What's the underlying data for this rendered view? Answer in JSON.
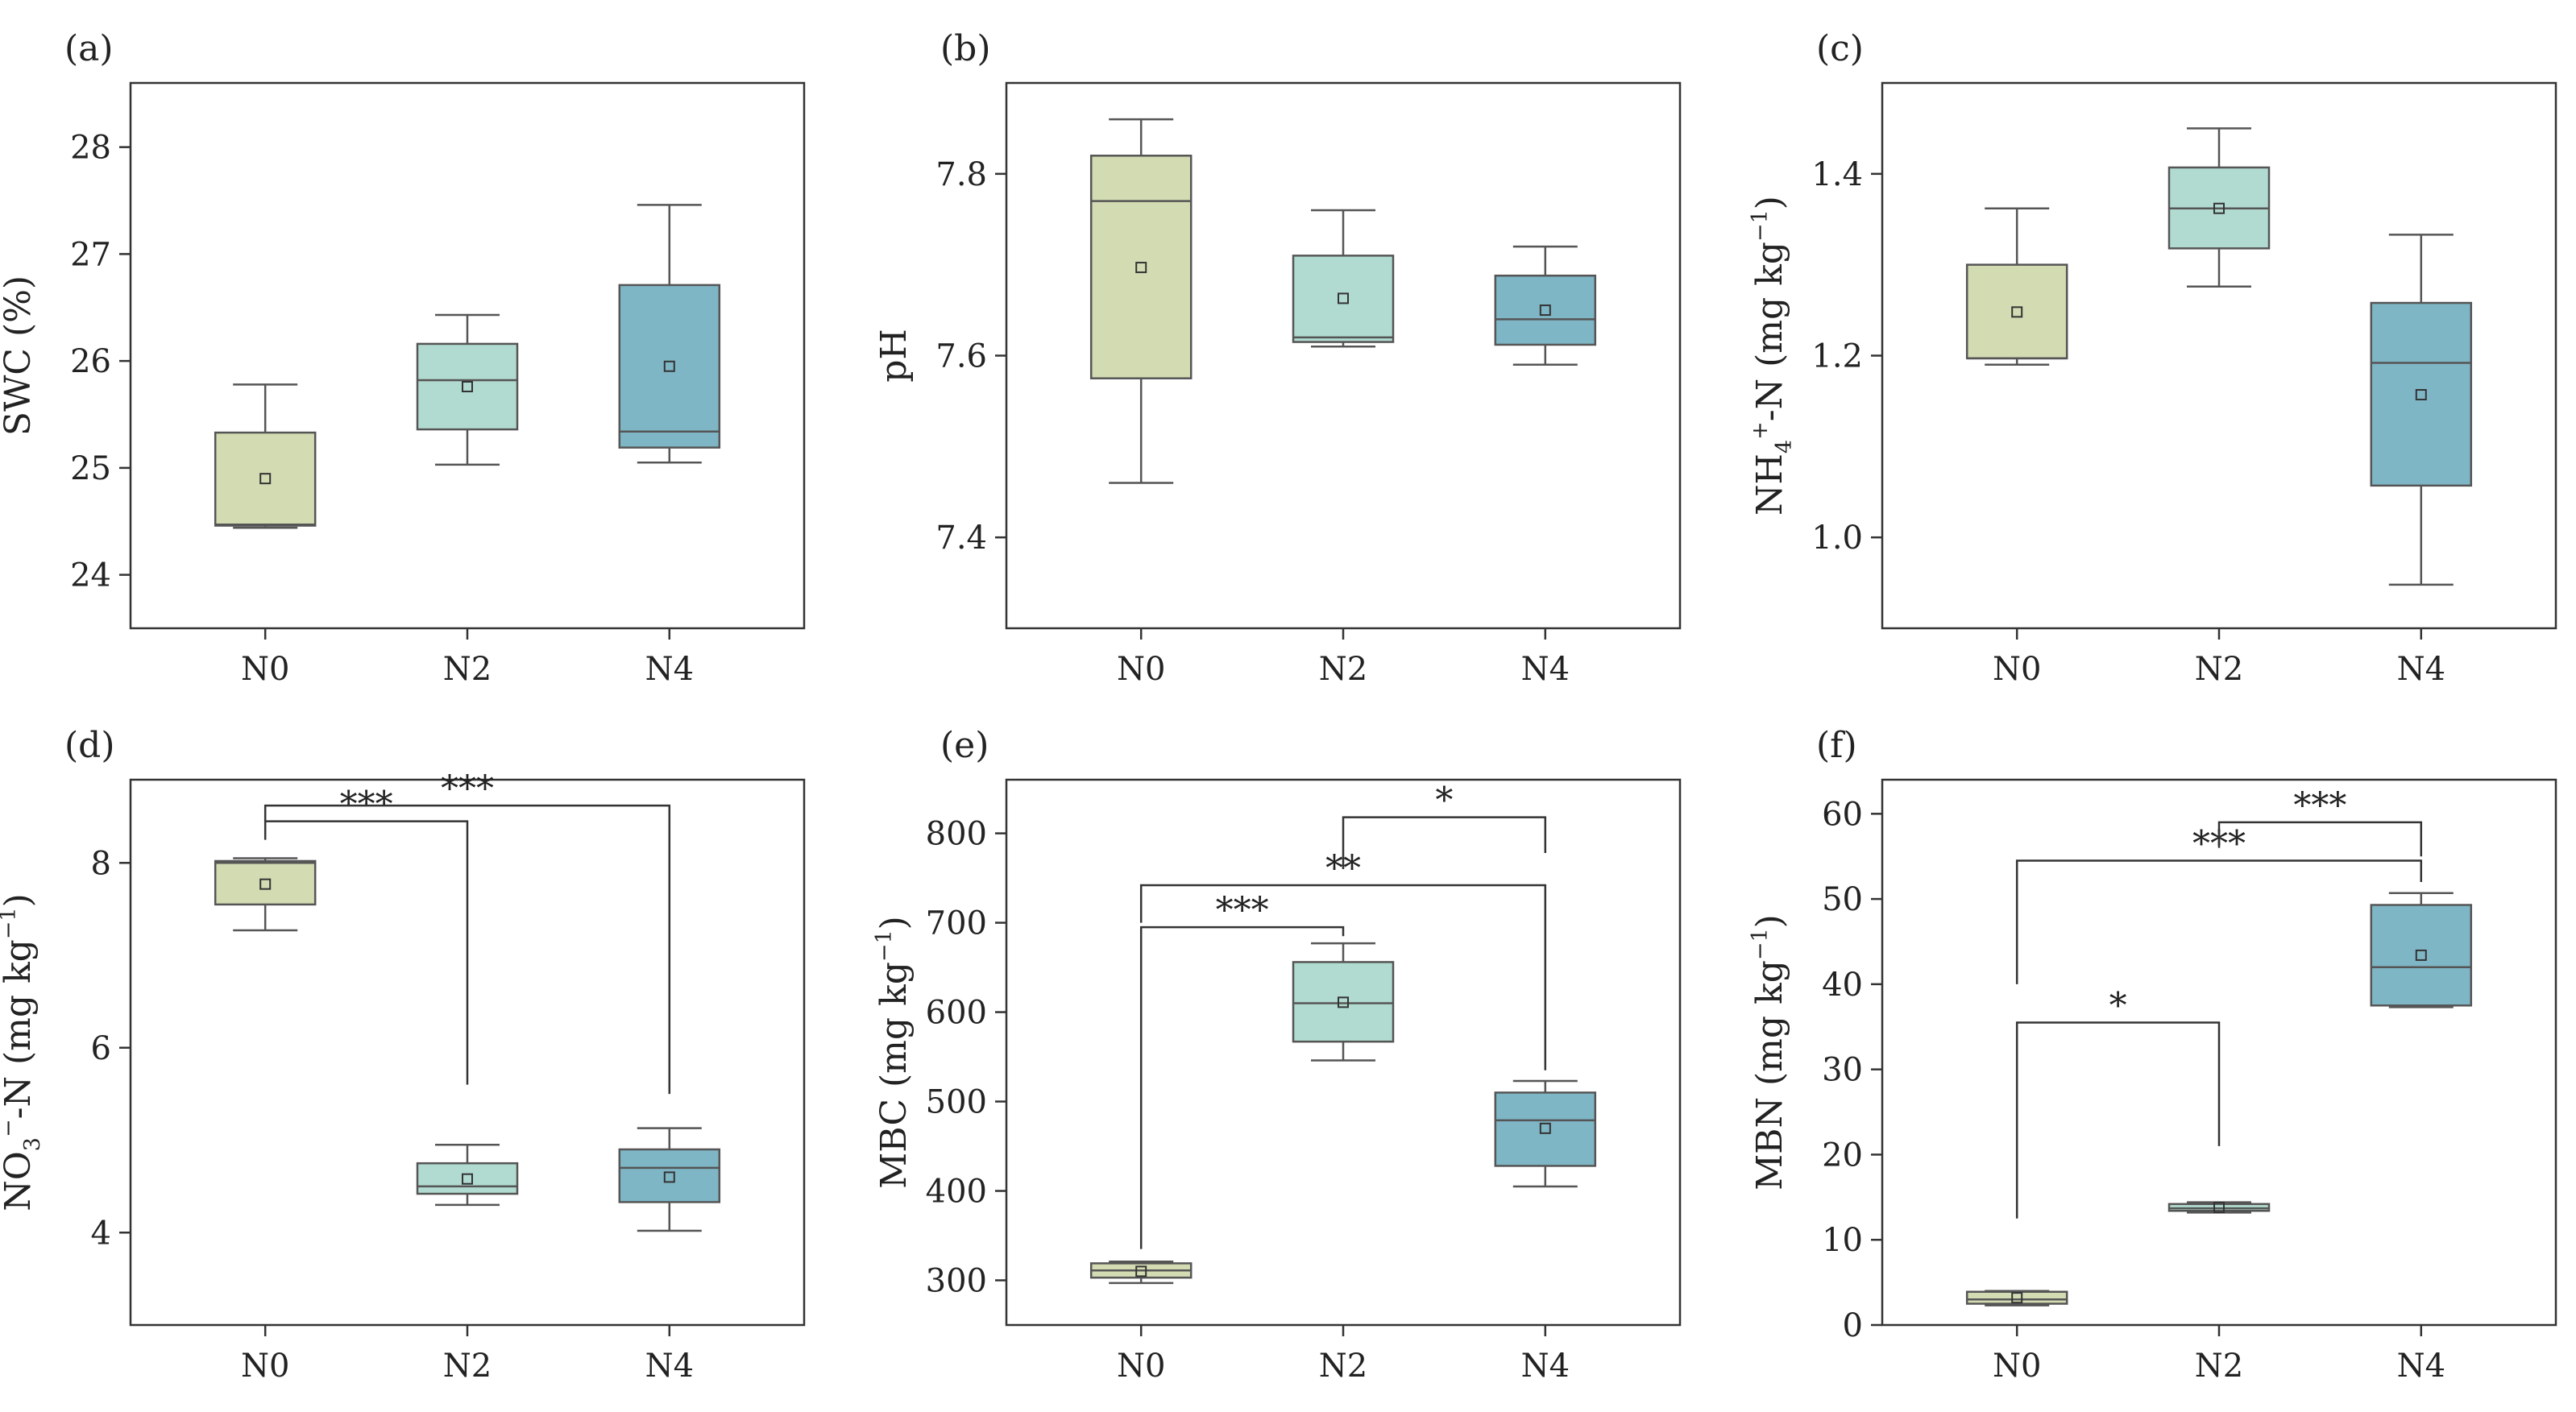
{
  "colors": {
    "N0": "#d3dbb3",
    "N2": "#b1dbd0",
    "N4": "#7fb6c6"
  },
  "chart_data": [
    {
      "type": "box",
      "panel": "(a)",
      "ylabel": "SWC (%)",
      "ylim": [
        23.5,
        28.6
      ],
      "yticks": [
        24,
        25,
        26,
        27,
        28
      ],
      "categories": [
        "N0",
        "N2",
        "N4"
      ],
      "boxes": [
        {
          "category": "N0",
          "min": 24.44,
          "q1": 24.46,
          "median": 24.47,
          "q3": 25.33,
          "max": 25.78,
          "mean": 24.9
        },
        {
          "category": "N2",
          "min": 25.03,
          "q1": 25.36,
          "median": 25.82,
          "q3": 26.16,
          "max": 26.43,
          "mean": 25.76
        },
        {
          "category": "N4",
          "min": 25.05,
          "q1": 25.19,
          "median": 25.34,
          "q3": 26.71,
          "max": 27.46,
          "mean": 25.95
        }
      ],
      "significance": []
    },
    {
      "type": "box",
      "panel": "(b)",
      "ylabel": "pH",
      "ylim": [
        7.3,
        7.9
      ],
      "yticks": [
        7.4,
        7.6,
        7.8
      ],
      "categories": [
        "N0",
        "N2",
        "N4"
      ],
      "boxes": [
        {
          "category": "N0",
          "min": 7.46,
          "q1": 7.575,
          "median": 7.77,
          "q3": 7.82,
          "max": 7.86,
          "mean": 7.697
        },
        {
          "category": "N2",
          "min": 7.61,
          "q1": 7.615,
          "median": 7.62,
          "q3": 7.71,
          "max": 7.76,
          "mean": 7.663
        },
        {
          "category": "N4",
          "min": 7.59,
          "q1": 7.612,
          "median": 7.64,
          "q3": 7.688,
          "max": 7.72,
          "mean": 7.65
        }
      ],
      "significance": []
    },
    {
      "type": "box",
      "panel": "(c)",
      "ylabel_main": "NH",
      "ylabel_sub": "4",
      "ylabel_sup": "+",
      "ylabel_mid": "-N (mg kg",
      "ylabel_exp": "−1",
      "ylabel_end": ")",
      "ylim": [
        0.9,
        1.5
      ],
      "yticks": [
        1.0,
        1.2,
        1.4
      ],
      "ytick_labels": [
        "1.0",
        "1.2",
        "1.4"
      ],
      "categories": [
        "N0",
        "N2",
        "N4"
      ],
      "boxes": [
        {
          "category": "N0",
          "min": 1.19,
          "q1": 1.197,
          "median": 1.197,
          "q3": 1.3,
          "max": 1.362,
          "mean": 1.248
        },
        {
          "category": "N2",
          "min": 1.276,
          "q1": 1.318,
          "median": 1.362,
          "q3": 1.407,
          "max": 1.45,
          "mean": 1.362
        },
        {
          "category": "N4",
          "min": 0.948,
          "q1": 1.057,
          "median": 1.192,
          "q3": 1.258,
          "max": 1.333,
          "mean": 1.157
        }
      ],
      "significance": []
    },
    {
      "type": "box",
      "panel": "(d)",
      "ylabel_main": "NO",
      "ylabel_sub": "3",
      "ylabel_sup": "−",
      "ylabel_mid": "-N (mg kg",
      "ylabel_exp": "−1",
      "ylabel_end": ")",
      "ylim": [
        3.0,
        8.9
      ],
      "yticks": [
        4,
        6,
        8
      ],
      "categories": [
        "N0",
        "N2",
        "N4"
      ],
      "boxes": [
        {
          "category": "N0",
          "min": 7.27,
          "q1": 7.55,
          "median": 8.0,
          "q3": 8.02,
          "max": 8.05,
          "mean": 7.77
        },
        {
          "category": "N2",
          "min": 4.3,
          "q1": 4.42,
          "median": 4.5,
          "q3": 4.75,
          "max": 4.95,
          "mean": 4.58
        },
        {
          "category": "N4",
          "min": 4.02,
          "q1": 4.33,
          "median": 4.7,
          "q3": 4.9,
          "max": 5.13,
          "mean": 4.6
        }
      ],
      "significance": [
        {
          "from": "N0",
          "to": "N2",
          "label": "***",
          "y": 8.45,
          "from_drop": 8.25,
          "to_drop": 5.6
        },
        {
          "from": "N0",
          "to": "N4",
          "label": "***",
          "y": 8.62,
          "from_drop": 8.45,
          "to_drop": 5.5
        }
      ]
    },
    {
      "type": "box",
      "panel": "(e)",
      "ylabel_main": "MBC (mg kg",
      "ylabel_exp": "−1",
      "ylabel_end": ")",
      "ylim": [
        250,
        860
      ],
      "yticks": [
        300,
        400,
        500,
        600,
        700,
        800
      ],
      "categories": [
        "N0",
        "N2",
        "N4"
      ],
      "boxes": [
        {
          "category": "N0",
          "min": 297,
          "q1": 303,
          "median": 311,
          "q3": 319,
          "max": 321,
          "mean": 310
        },
        {
          "category": "N2",
          "min": 546,
          "q1": 567,
          "median": 610,
          "q3": 656,
          "max": 677,
          "mean": 611
        },
        {
          "category": "N4",
          "min": 405,
          "q1": 428,
          "median": 479,
          "q3": 510,
          "max": 523,
          "mean": 470
        }
      ],
      "significance": [
        {
          "from": "N0",
          "to": "N2",
          "label": "***",
          "y": 695,
          "from_drop": 335,
          "to_drop": 685
        },
        {
          "from": "N0",
          "to": "N4",
          "label": "**",
          "y": 742,
          "from_drop": 700,
          "to_drop": 535
        },
        {
          "from": "N2",
          "to": "N4",
          "label": "*",
          "y": 818,
          "from_drop": 760,
          "to_drop": 778
        }
      ]
    },
    {
      "type": "box",
      "panel": "(f)",
      "ylabel_main": "MBN (mg kg",
      "ylabel_exp": "−1",
      "ylabel_end": ")",
      "ylim": [
        0,
        64
      ],
      "yticks": [
        0,
        10,
        20,
        30,
        40,
        50,
        60
      ],
      "categories": [
        "N0",
        "N2",
        "N4"
      ],
      "boxes": [
        {
          "category": "N0",
          "min": 2.3,
          "q1": 2.5,
          "median": 3.0,
          "q3": 3.9,
          "max": 4.0,
          "mean": 3.2
        },
        {
          "category": "N2",
          "min": 13.2,
          "q1": 13.4,
          "median": 13.7,
          "q3": 14.2,
          "max": 14.4,
          "mean": 13.8
        },
        {
          "category": "N4",
          "min": 37.3,
          "q1": 37.5,
          "median": 42.0,
          "q3": 49.3,
          "max": 50.7,
          "mean": 43.4
        }
      ],
      "significance": [
        {
          "from": "N0",
          "to": "N2",
          "label": "*",
          "y": 35.5,
          "from_drop": 12.5,
          "to_drop": 21
        },
        {
          "from": "N0",
          "to": "N4",
          "label": "***",
          "y": 54.5,
          "from_drop": 40,
          "to_drop": 52
        },
        {
          "from": "N2",
          "to": "N4",
          "label": "***",
          "y": 59,
          "from_drop": 56,
          "to_drop": 55
        }
      ]
    }
  ]
}
